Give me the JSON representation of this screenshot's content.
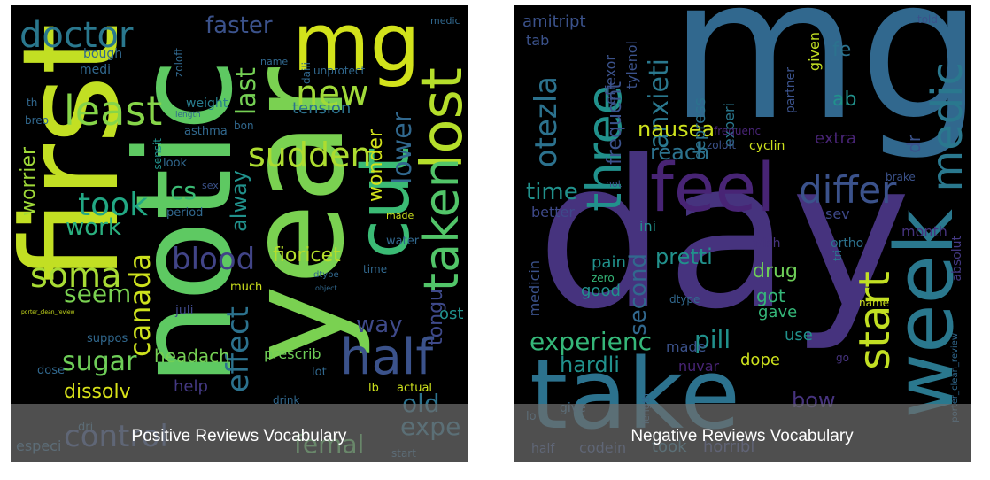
{
  "captions": {
    "positive": "Positive Reviews Vocabulary",
    "negative": "Negative Reviews Vocabulary"
  },
  "colors": {
    "background": "#000000",
    "palette": [
      "#440154",
      "#3b528b",
      "#21918c",
      "#5ec962",
      "#fde725"
    ]
  },
  "positive_words": [
    "first",
    "notic",
    "year",
    "mg",
    "cut",
    "lost",
    "taken",
    "half",
    "least",
    "new",
    "doctor",
    "sudden",
    "soma",
    "took",
    "canada",
    "blood",
    "fioricet",
    "sugar",
    "seem",
    "work",
    "alway",
    "effect",
    "control",
    "old",
    "expe",
    "femal",
    "dissolv",
    "lower",
    "wonder",
    "tension",
    "last",
    "faster",
    "way",
    "headach",
    "prescrib",
    "help",
    "tongu",
    "ost",
    "medi",
    "bough",
    "weight",
    "asthma",
    "sensit",
    "look",
    "period",
    "sex",
    "juli",
    "much",
    "suppos",
    "dose",
    "porter_clean_review",
    "th",
    "breo",
    "zoloft",
    "daili",
    "name",
    "unprotect",
    "bon",
    "drink",
    "made",
    "water",
    "time",
    "dtype",
    "object",
    "lb",
    "actual",
    "lot",
    "dri",
    "especi",
    "start",
    "medic",
    "length",
    "worrier",
    "cs"
  ],
  "negative_words": [
    "day",
    "mg",
    "take",
    "week",
    "feel",
    "differ",
    "start",
    "three",
    "otezla",
    "medic",
    "anxieti",
    "frequent",
    "nausea",
    "reach",
    "time",
    "better",
    "experienc",
    "pill",
    "hardli",
    "made",
    "dope",
    "nuvar",
    "drug",
    "pain",
    "zero",
    "good",
    "second",
    "pretti",
    "got",
    "gave",
    "use",
    "bow",
    "amitript",
    "tab",
    "effexor",
    "tylenol",
    "depress",
    "experi",
    "frequenc",
    "cyclin",
    "zoloft",
    "hot",
    "ab",
    "fe",
    "given",
    "partner",
    "extra",
    "dr",
    "brake",
    "sev",
    "ini",
    "month",
    "wish",
    "ortho",
    "tri",
    "absolut",
    "name",
    "dtype",
    "length",
    "porter_clean_review",
    "give",
    "half",
    "codein",
    "took",
    "horribl",
    "go",
    "told",
    "lo",
    "medicin"
  ]
}
